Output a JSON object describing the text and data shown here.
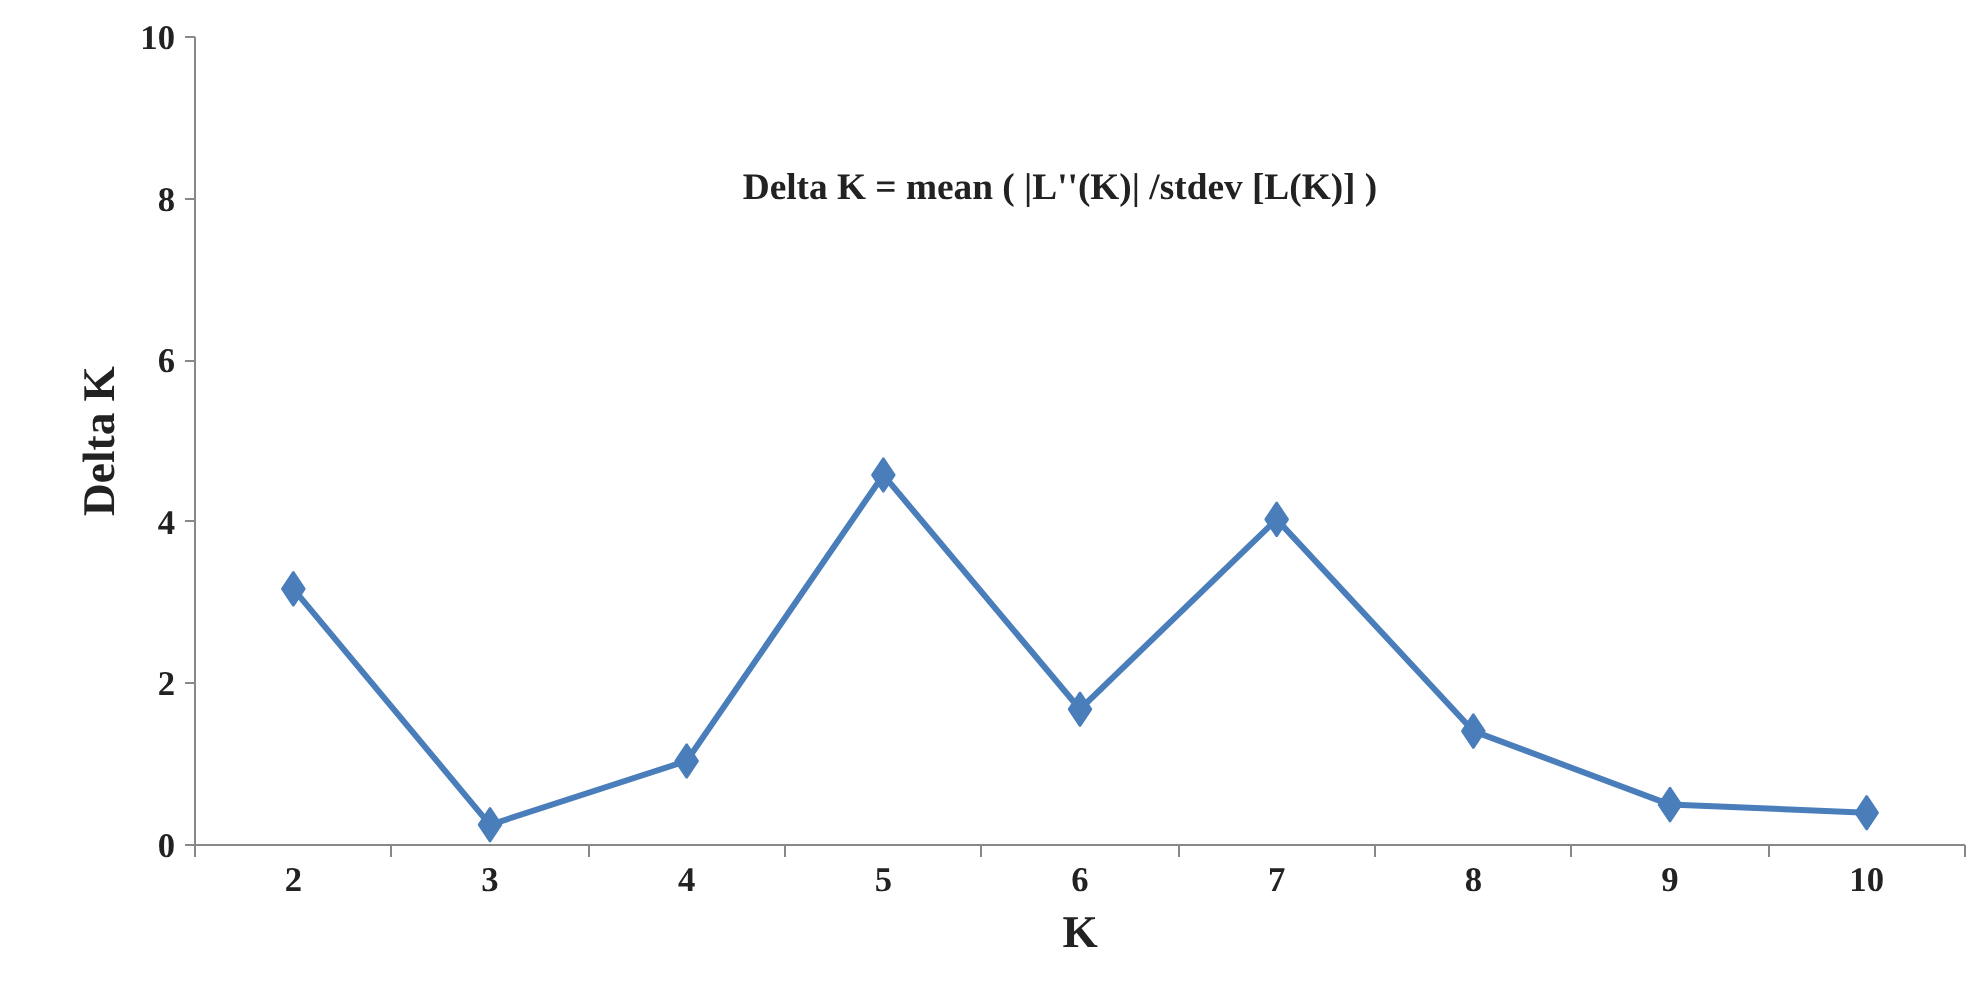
{
  "chart_data": {
    "type": "line",
    "xlabel": "K",
    "ylabel": "Delta K",
    "annotations": [
      "Delta K = mean ( |L''(K)| /stdev [L(K)] )"
    ],
    "categories": [
      "2",
      "3",
      "4",
      "5",
      "6",
      "7",
      "8",
      "9",
      "10"
    ],
    "series": [
      {
        "color": "#4a7ebb",
        "values": [
          3.17,
          0.25,
          1.04,
          4.58,
          1.68,
          4.03,
          1.41,
          0.5,
          0.4
        ]
      }
    ],
    "ylim": [
      0,
      10
    ],
    "yticks": [
      0,
      2,
      4,
      6,
      8,
      10
    ],
    "grid": false,
    "marker": "diamond",
    "line_style": "solid"
  }
}
